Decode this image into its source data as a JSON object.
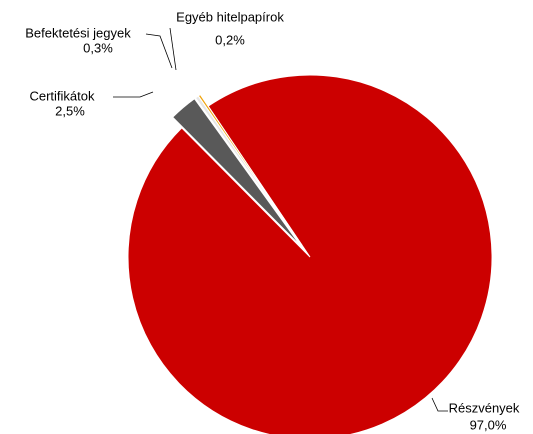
{
  "chart_data": {
    "type": "pie",
    "categories": [
      "Részvények",
      "Certifikátok",
      "Befektetési jegyek",
      "Egyéb hitelpapírok"
    ],
    "values": [
      97.0,
      2.5,
      0.3,
      0.2
    ],
    "value_labels": [
      "97,0%",
      "2,5%",
      "0,3%",
      "0,2%"
    ],
    "colors": [
      "#cc0000",
      "#595959",
      "#e6e6e6",
      "#f0a30a"
    ]
  }
}
